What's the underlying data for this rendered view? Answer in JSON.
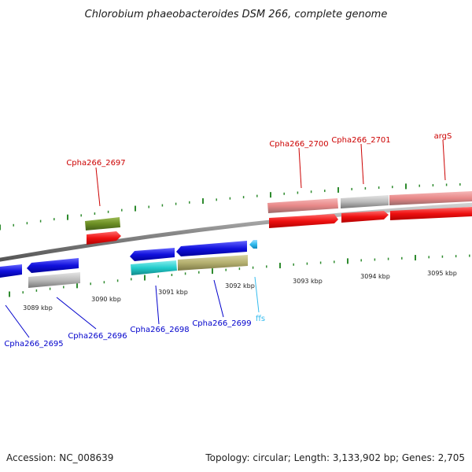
{
  "title": "Chlorobium phaeobacteroides DSM 266, complete genome",
  "footer": {
    "accession": "Accession: NC_008639",
    "topology": "Topology: circular; Length: 3,133,902 bp; Genes: 2,705"
  },
  "colors": {
    "backbone": "#8a8a8a",
    "tick": "#2e8b2e",
    "forward_label": "#cc0000",
    "reverse_label": "#0000cc",
    "rna_label": "#33bbee",
    "cds_red": "#ee1111",
    "cds_blue": "#1111dd",
    "gene_pink": "#e88888",
    "gene_grey": "#bbbbbb",
    "gene_olive": "#6b8e23",
    "gene_teal": "#22cccc",
    "gene_khaki": "#b5b070",
    "rna_cyan": "#33bbee"
  },
  "scale_labels": [
    "3089 kbp",
    "3090 kbp",
    "3091 kbp",
    "3092 kbp",
    "3093 kbp",
    "3094 kbp",
    "3095 kbp"
  ],
  "forward_labels": [
    "Cpha266_2697",
    "Cpha266_2700",
    "Cpha266_2701",
    "argS"
  ],
  "reverse_labels": [
    "Cpha266_2695",
    "Cpha266_2696",
    "Cpha266_2698",
    "Cpha266_2699",
    "ffs"
  ]
}
